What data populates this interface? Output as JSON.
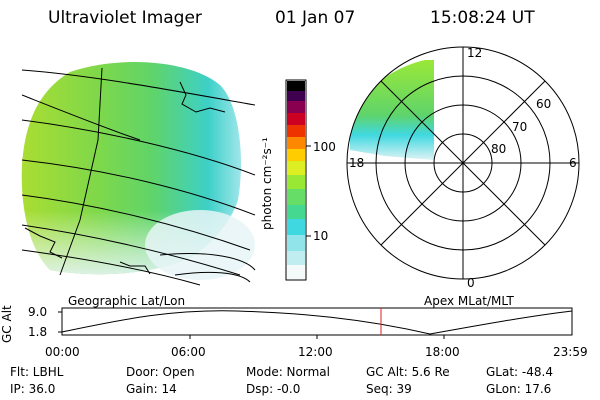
{
  "header": {
    "instrument": "Ultraviolet Imager",
    "date": "01 Jan 07",
    "time": "15:08:24 UT"
  },
  "colorbar": {
    "unit_label": "photon cm⁻²s⁻¹",
    "ticks": [
      "100",
      "10"
    ],
    "scale": "log",
    "colors": [
      "#ffffff",
      "#c0eef0",
      "#40d8e0",
      "#66dd66",
      "#99e833",
      "#ddee22",
      "#ffcc00",
      "#ff8800",
      "#ee2200",
      "#b00040",
      "#600060",
      "#000000"
    ]
  },
  "polar_plot": {
    "mlt_labels": [
      "12",
      "18",
      "6",
      "0"
    ],
    "lat_labels": [
      "60",
      "70",
      "80"
    ]
  },
  "map_labels": {
    "geographic": "Geographic Lat/Lon",
    "apex": "Apex MLat/MLT"
  },
  "altitude_plot": {
    "ylabel": "GC Alt",
    "yticks": [
      "9.0",
      "1.8"
    ],
    "xticks": [
      "00:00",
      "06:00",
      "12:00",
      "18:00",
      "23:59"
    ],
    "current_time_marker": "15:08",
    "marker_color": "#e02020"
  },
  "info": {
    "flt": "Flt: LBHL",
    "ip": "IP: 36.0",
    "door": "Door: Open",
    "gain": "Gain: 14",
    "mode": "Mode: Normal",
    "dsp": "Dsp:   -0.0",
    "gcalt": "GC Alt: 5.6 Re",
    "seq": "Seq: 39",
    "glat": "GLat:  -48.4",
    "glon": "GLon:  17.6"
  }
}
